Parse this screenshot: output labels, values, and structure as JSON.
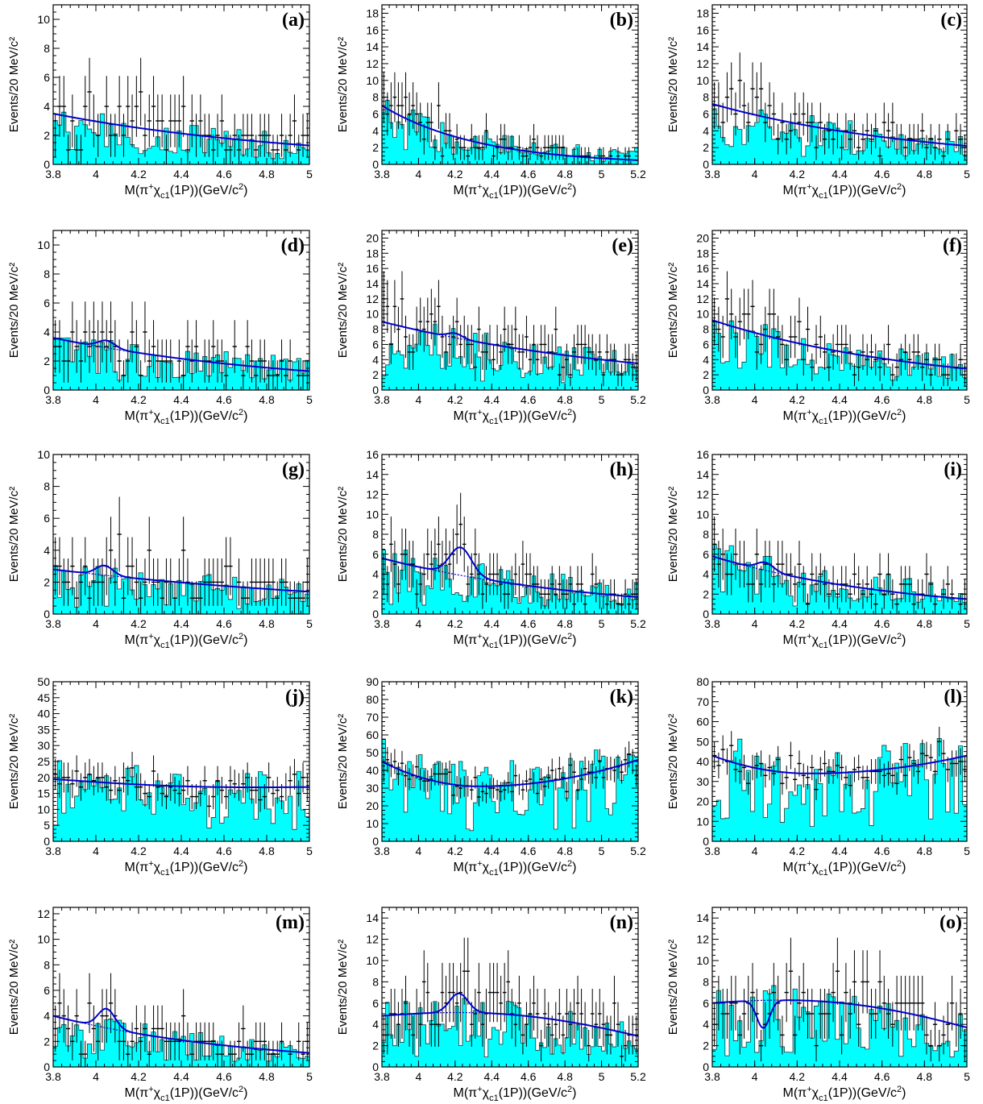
{
  "figure": {
    "ylabel": "Events/20 MeV/c²",
    "xlabel": "M(π⁺χ_c1(1P))(GeV/c²)",
    "xlabel_main": "M(π",
    "xlabel_sup": "+",
    "xlabel_chi": "χ",
    "xlabel_sub": "c1",
    "xlabel_tail": "(1P))(GeV/c",
    "xlabel_sup2": "2",
    "xlabel_end": ")",
    "colors": {
      "fill": "#00ffff",
      "fit": "#0000cc",
      "data": "#000000",
      "frame": "#000000"
    }
  },
  "chart_data": [
    {
      "label": "(a)",
      "type": "bar",
      "xlim": [
        3.8,
        5.0
      ],
      "ylim": [
        0,
        11
      ],
      "yticks": [
        0,
        2,
        4,
        6,
        8,
        10
      ],
      "xticks": [
        3.8,
        4.0,
        4.2,
        4.4,
        4.6,
        4.8,
        5.0
      ],
      "xtick_labels": [
        "3.8",
        "4",
        "4.2",
        "4.4",
        "4.6",
        "4.8",
        "5"
      ],
      "fit_start": 3.5,
      "fit_end": 1.3,
      "peak": null,
      "mc_level": 2.0
    },
    {
      "label": "(b)",
      "type": "bar",
      "xlim": [
        3.8,
        5.2
      ],
      "ylim": [
        0,
        19
      ],
      "yticks": [
        0,
        2,
        4,
        6,
        8,
        10,
        12,
        14,
        16,
        18
      ],
      "xticks": [
        3.8,
        4.0,
        4.2,
        4.4,
        4.6,
        4.8,
        5.0,
        5.2
      ],
      "xtick_labels": [
        "3.8",
        "4",
        "4.2",
        "4.4",
        "4.6",
        "4.8",
        "5",
        "5.2"
      ],
      "fit_start": 7.0,
      "fit_end": 0.5,
      "peak": null,
      "mc_level": 4.0
    },
    {
      "label": "(c)",
      "type": "bar",
      "xlim": [
        3.8,
        5.0
      ],
      "ylim": [
        0,
        19
      ],
      "yticks": [
        0,
        2,
        4,
        6,
        8,
        10,
        12,
        14,
        16,
        18
      ],
      "xticks": [
        3.8,
        4.0,
        4.2,
        4.4,
        4.6,
        4.8,
        5.0
      ],
      "xtick_labels": [
        "3.8",
        "4",
        "4.2",
        "4.4",
        "4.6",
        "4.8",
        "5"
      ],
      "fit_start": 7.2,
      "fit_end": 2.2,
      "peak": null,
      "mc_level": 4.0
    },
    {
      "label": "(d)",
      "type": "bar",
      "xlim": [
        3.8,
        5.0
      ],
      "ylim": [
        0,
        11
      ],
      "yticks": [
        0,
        2,
        4,
        6,
        8,
        10
      ],
      "xticks": [
        3.8,
        4.0,
        4.2,
        4.4,
        4.6,
        4.8,
        5.0
      ],
      "xtick_labels": [
        "3.8",
        "4",
        "4.2",
        "4.4",
        "4.6",
        "4.8",
        "5"
      ],
      "fit_start": 3.6,
      "fit_end": 1.3,
      "peak": {
        "x": 4.05,
        "h": 0.5,
        "w": 0.04
      },
      "mc_level": 2.2
    },
    {
      "label": "(e)",
      "type": "bar",
      "xlim": [
        3.8,
        5.2
      ],
      "ylim": [
        0,
        21
      ],
      "yticks": [
        0,
        2,
        4,
        6,
        8,
        10,
        12,
        14,
        16,
        18,
        20
      ],
      "xticks": [
        3.8,
        4.0,
        4.2,
        4.4,
        4.6,
        4.8,
        5.0,
        5.2
      ],
      "xtick_labels": [
        "3.8",
        "4",
        "4.2",
        "4.4",
        "4.6",
        "4.8",
        "5",
        "5.2"
      ],
      "fit_start": 9.0,
      "fit_end": 3.5,
      "peak": {
        "x": 4.2,
        "h": 0.6,
        "w": 0.04
      },
      "mc_level": 4.5
    },
    {
      "label": "(f)",
      "type": "bar",
      "xlim": [
        3.8,
        5.0
      ],
      "ylim": [
        0,
        21
      ],
      "yticks": [
        0,
        2,
        4,
        6,
        8,
        10,
        12,
        14,
        16,
        18,
        20
      ],
      "xticks": [
        3.8,
        4.0,
        4.2,
        4.4,
        4.6,
        4.8,
        5.0
      ],
      "xtick_labels": [
        "3.8",
        "4",
        "4.2",
        "4.4",
        "4.6",
        "4.8",
        "5"
      ],
      "fit_start": 9.2,
      "fit_end": 2.8,
      "peak": null,
      "mc_level": 4.5
    },
    {
      "label": "(g)",
      "type": "bar",
      "xlim": [
        3.8,
        5.0
      ],
      "ylim": [
        0,
        10
      ],
      "yticks": [
        0,
        2,
        4,
        6,
        8,
        10
      ],
      "xticks": [
        3.8,
        4.0,
        4.2,
        4.4,
        4.6,
        4.8,
        5.0
      ],
      "xtick_labels": [
        "3.8",
        "4",
        "4.2",
        "4.4",
        "4.6",
        "4.8",
        "5"
      ],
      "fit_start": 2.8,
      "fit_end": 1.4,
      "peak": {
        "x": 4.04,
        "h": 0.6,
        "w": 0.04
      },
      "mc_level": 1.8
    },
    {
      "label": "(h)",
      "type": "bar",
      "xlim": [
        3.8,
        5.2
      ],
      "ylim": [
        0,
        16
      ],
      "yticks": [
        0,
        2,
        4,
        6,
        8,
        10,
        12,
        14,
        16
      ],
      "xticks": [
        3.8,
        4.0,
        4.2,
        4.4,
        4.6,
        4.8,
        5.0,
        5.2
      ],
      "xtick_labels": [
        "3.8",
        "4",
        "4.2",
        "4.4",
        "4.6",
        "4.8",
        "5",
        "5.2"
      ],
      "fit_start": 5.6,
      "fit_end": 1.7,
      "peak": {
        "x": 4.23,
        "h": 2.8,
        "w": 0.06
      },
      "mc_level": 4.0
    },
    {
      "label": "(i)",
      "type": "bar",
      "xlim": [
        3.8,
        5.0
      ],
      "ylim": [
        0,
        16
      ],
      "yticks": [
        0,
        2,
        4,
        6,
        8,
        10,
        12,
        14,
        16
      ],
      "xticks": [
        3.8,
        4.0,
        4.2,
        4.4,
        4.6,
        4.8,
        5.0
      ],
      "xtick_labels": [
        "3.8",
        "4",
        "4.2",
        "4.4",
        "4.6",
        "4.8",
        "5"
      ],
      "fit_start": 5.8,
      "fit_end": 1.5,
      "peak": {
        "x": 4.05,
        "h": 0.8,
        "w": 0.04
      },
      "mc_level": 4.5
    },
    {
      "label": "(j)",
      "type": "bar",
      "xlim": [
        3.8,
        5.0
      ],
      "ylim": [
        0,
        50
      ],
      "yticks": [
        0,
        5,
        10,
        15,
        20,
        25,
        30,
        35,
        40,
        45,
        50
      ],
      "xticks": [
        3.8,
        4.0,
        4.2,
        4.4,
        4.6,
        4.8,
        5.0
      ],
      "xtick_labels": [
        "3.8",
        "4",
        "4.2",
        "4.4",
        "4.6",
        "4.8",
        "5"
      ],
      "fit_start": 19.5,
      "fit_end": 17.0,
      "peak": null,
      "mc_level": 16.0,
      "shape": "flat"
    },
    {
      "label": "(k)",
      "type": "bar",
      "xlim": [
        3.8,
        5.2
      ],
      "ylim": [
        0,
        90
      ],
      "yticks": [
        0,
        10,
        20,
        30,
        40,
        50,
        60,
        70,
        80,
        90
      ],
      "xticks": [
        3.8,
        4.0,
        4.2,
        4.4,
        4.6,
        4.8,
        5.0,
        5.2
      ],
      "xtick_labels": [
        "3.8",
        "4",
        "4.2",
        "4.4",
        "4.6",
        "4.8",
        "5",
        "5.2"
      ],
      "fit_start": 45.0,
      "fit_end": 46.0,
      "fit_min": 31.0,
      "peak": null,
      "mc_level": 36.0,
      "shape": "bowl"
    },
    {
      "label": "(l)",
      "type": "bar",
      "xlim": [
        3.8,
        5.0
      ],
      "ylim": [
        0,
        80
      ],
      "yticks": [
        0,
        10,
        20,
        30,
        40,
        50,
        60,
        70,
        80
      ],
      "xticks": [
        3.8,
        4.0,
        4.2,
        4.4,
        4.6,
        4.8,
        5.0
      ],
      "xtick_labels": [
        "3.8",
        "4",
        "4.2",
        "4.4",
        "4.6",
        "4.8",
        "5"
      ],
      "fit_start": 43.0,
      "fit_end": 43.0,
      "fit_min": 34.0,
      "peak": null,
      "mc_level": 37.0,
      "shape": "bowl"
    },
    {
      "label": "(m)",
      "type": "bar",
      "xlim": [
        3.8,
        5.0
      ],
      "ylim": [
        0,
        12.5
      ],
      "yticks": [
        0,
        2,
        4,
        6,
        8,
        10,
        12
      ],
      "xticks": [
        3.8,
        4.0,
        4.2,
        4.4,
        4.6,
        4.8,
        5.0
      ],
      "xtick_labels": [
        "3.8",
        "4",
        "4.2",
        "4.4",
        "4.6",
        "4.8",
        "5"
      ],
      "fit_start": 4.0,
      "fit_end": 1.1,
      "peak": {
        "x": 4.05,
        "h": 1.5,
        "w": 0.04
      },
      "mc_level": 2.3
    },
    {
      "label": "(n)",
      "type": "bar",
      "xlim": [
        3.8,
        5.2
      ],
      "ylim": [
        0,
        15
      ],
      "yticks": [
        0,
        2,
        4,
        6,
        8,
        10,
        12,
        14
      ],
      "xticks": [
        3.8,
        4.0,
        4.2,
        4.4,
        4.6,
        4.8,
        5.0,
        5.2
      ],
      "xtick_labels": [
        "3.8",
        "4",
        "4.2",
        "4.4",
        "4.6",
        "4.8",
        "5",
        "5.2"
      ],
      "fit_start": 4.8,
      "fit_end": 2.9,
      "peak": {
        "x": 4.22,
        "h": 1.8,
        "w": 0.05
      },
      "mc_level": 4.0,
      "shape": "hump"
    },
    {
      "label": "(o)",
      "type": "bar",
      "xlim": [
        3.8,
        5.0
      ],
      "ylim": [
        0,
        15
      ],
      "yticks": [
        0,
        2,
        4,
        6,
        8,
        10,
        12,
        14
      ],
      "xticks": [
        3.8,
        4.0,
        4.2,
        4.4,
        4.6,
        4.8,
        5.0
      ],
      "xtick_labels": [
        "3.8",
        "4",
        "4.2",
        "4.4",
        "4.6",
        "4.8",
        "5"
      ],
      "fit_start": 6.0,
      "fit_end": 3.7,
      "peak": {
        "x": 4.04,
        "h": -2.6,
        "w": 0.03
      },
      "mc_level": 4.0,
      "shape": "hump"
    }
  ]
}
